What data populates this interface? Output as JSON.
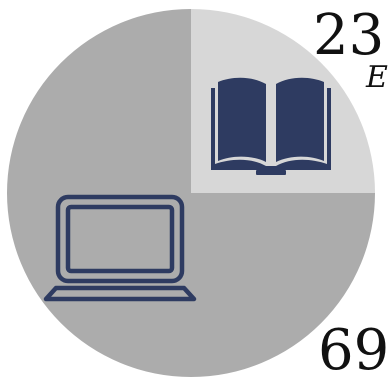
{
  "chart_data": {
    "type": "pie",
    "series": [
      {
        "value": 23,
        "color": "#d7d7d7",
        "icon": "open-book-icon"
      },
      {
        "value": 69,
        "color": "#acacac",
        "icon": "laptop-icon"
      }
    ],
    "labels": {
      "top": "23",
      "top_sub": "E",
      "bottom": "69"
    },
    "icon_color": "#2e3b61"
  }
}
